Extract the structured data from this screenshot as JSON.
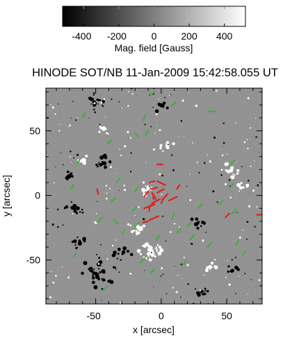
{
  "colorbar": {
    "tick_labels": [
      "-400",
      "-200",
      "0",
      "200",
      "400"
    ],
    "tick_values": [
      -400,
      -200,
      0,
      200,
      400
    ],
    "range": [
      -520,
      520
    ],
    "label": "Mag. field [Gauss]"
  },
  "title": "HINODE SOT/NB 11-Jan-2009 15:42:58.055 UT",
  "chart_data": {
    "type": "scatter",
    "title": "HINODE SOT/NB 11-Jan-2009 15:42:58.055 UT",
    "xlabel": "x [arcsec]",
    "ylabel": "y [arcsec]",
    "xlim": [
      -88,
      77
    ],
    "ylim": [
      -84,
      83
    ],
    "x_ticks": [
      -50,
      0,
      50
    ],
    "y_ticks": [
      -50,
      0,
      50
    ],
    "x_tick_labels": [
      "-50",
      "0",
      "50"
    ],
    "y_tick_labels": [
      "-50",
      "0",
      "50"
    ],
    "grid": false,
    "background": "line-of-sight magnetogram, grayscale",
    "series": [
      {
        "color": "#e02020",
        "segments": [
          [
            [
              -3,
              11
            ],
            [
              3,
              8
            ]
          ],
          [
            [
              6,
              -4
            ],
            [
              12,
              -1
            ]
          ],
          [
            [
              -1,
              -3
            ],
            [
              -7,
              -6
            ]
          ],
          [
            [
              -10,
              3
            ],
            [
              -13,
              -1
            ]
          ],
          [
            [
              -13,
              -10
            ],
            [
              -5,
              -7
            ]
          ],
          [
            [
              -9,
              -19
            ],
            [
              -2,
              -16
            ]
          ],
          [
            [
              -14,
              -21
            ],
            [
              -10,
              -20
            ]
          ],
          [
            [
              -49,
              5
            ],
            [
              -48,
              1
            ]
          ],
          [
            [
              2,
              -2
            ],
            [
              0,
              -6
            ]
          ],
          [
            [
              -9,
              10
            ],
            [
              -5,
              11
            ]
          ],
          [
            [
              -8,
              5
            ],
            [
              -3,
              6
            ]
          ],
          [
            [
              -3,
              2
            ],
            [
              2,
              5
            ]
          ],
          [
            [
              -7,
              2
            ],
            [
              -4,
              -3
            ]
          ],
          [
            [
              -5,
              -5
            ],
            [
              -9,
              -9
            ]
          ],
          [
            [
              -9,
              -8
            ],
            [
              -9,
              -12
            ]
          ],
          [
            [
              -6,
              0
            ],
            [
              -6,
              -3
            ]
          ],
          [
            [
              1,
              -3
            ],
            [
              5,
              1
            ]
          ],
          [
            [
              12,
              5
            ],
            [
              14,
              8
            ]
          ],
          [
            [
              49,
              -17
            ],
            [
              52,
              -14
            ]
          ],
          [
            [
              73,
              -15
            ],
            [
              77,
              -15
            ]
          ],
          [
            [
              -3,
              24
            ],
            [
              1,
              24
            ]
          ]
        ]
      },
      {
        "color": "#3fae3f",
        "segments": [
          [
            [
              -60,
              61
            ],
            [
              -58,
              64
            ]
          ],
          [
            [
              -14,
              58
            ],
            [
              -12,
              62
            ]
          ],
          [
            [
              8,
              69
            ],
            [
              11,
              72
            ]
          ],
          [
            [
              -8,
              78
            ],
            [
              -5,
              80
            ]
          ],
          [
            [
              36,
              65
            ],
            [
              41,
              65
            ]
          ],
          [
            [
              -41,
              40
            ],
            [
              -38,
              43
            ]
          ],
          [
            [
              -12,
              46
            ],
            [
              -10,
              50
            ]
          ],
          [
            [
              -20,
              48
            ],
            [
              -17,
              45
            ]
          ],
          [
            [
              -64,
              25
            ],
            [
              -62,
              28
            ]
          ],
          [
            [
              -69,
              5
            ],
            [
              -67,
              8
            ]
          ],
          [
            [
              -34,
              10
            ],
            [
              -32,
              13
            ]
          ],
          [
            [
              -38,
              -5
            ],
            [
              -35,
              -2
            ]
          ],
          [
            [
              -36,
              -19
            ],
            [
              -33,
              -22
            ]
          ],
          [
            [
              -20,
              3
            ],
            [
              -18,
              6
            ]
          ],
          [
            [
              -22,
              -12
            ],
            [
              -19,
              -9
            ]
          ],
          [
            [
              -20,
              -24
            ],
            [
              -17,
              -21
            ]
          ],
          [
            [
              -30,
              -30
            ],
            [
              -28,
              -27
            ]
          ],
          [
            [
              8,
              -18
            ],
            [
              10,
              -14
            ]
          ],
          [
            [
              -4,
              -34
            ],
            [
              -1,
              -31
            ]
          ],
          [
            [
              12,
              -29
            ],
            [
              15,
              -26
            ]
          ],
          [
            [
              20,
              -24
            ],
            [
              23,
              -21
            ]
          ],
          [
            [
              22,
              -34
            ],
            [
              25,
              -31
            ]
          ],
          [
            [
              35,
              -40
            ],
            [
              38,
              -37
            ]
          ],
          [
            [
              44,
              -7
            ],
            [
              47,
              -4
            ]
          ],
          [
            [
              54,
              -14
            ],
            [
              57,
              -11
            ]
          ],
          [
            [
              52,
              6
            ],
            [
              55,
              9
            ]
          ],
          [
            [
              53,
              24
            ],
            [
              56,
              27
            ]
          ],
          [
            [
              57,
              -38
            ],
            [
              59,
              -35
            ]
          ],
          [
            [
              -48,
              -20
            ],
            [
              -45,
              -17
            ]
          ],
          [
            [
              -16,
              -52
            ],
            [
              -13,
              -49
            ]
          ],
          [
            [
              -44,
              -73
            ],
            [
              -41,
              -70
            ]
          ],
          [
            [
              16,
              -54
            ],
            [
              19,
              -51
            ]
          ],
          [
            [
              -67,
              -48
            ],
            [
              -65,
              -45
            ]
          ],
          [
            [
              -8,
              -60
            ],
            [
              -5,
              -57
            ]
          ],
          [
            [
              62,
              -46
            ],
            [
              64,
              -43
            ]
          ],
          [
            [
              28,
              -10
            ],
            [
              31,
              -7
            ]
          ]
        ]
      }
    ]
  }
}
